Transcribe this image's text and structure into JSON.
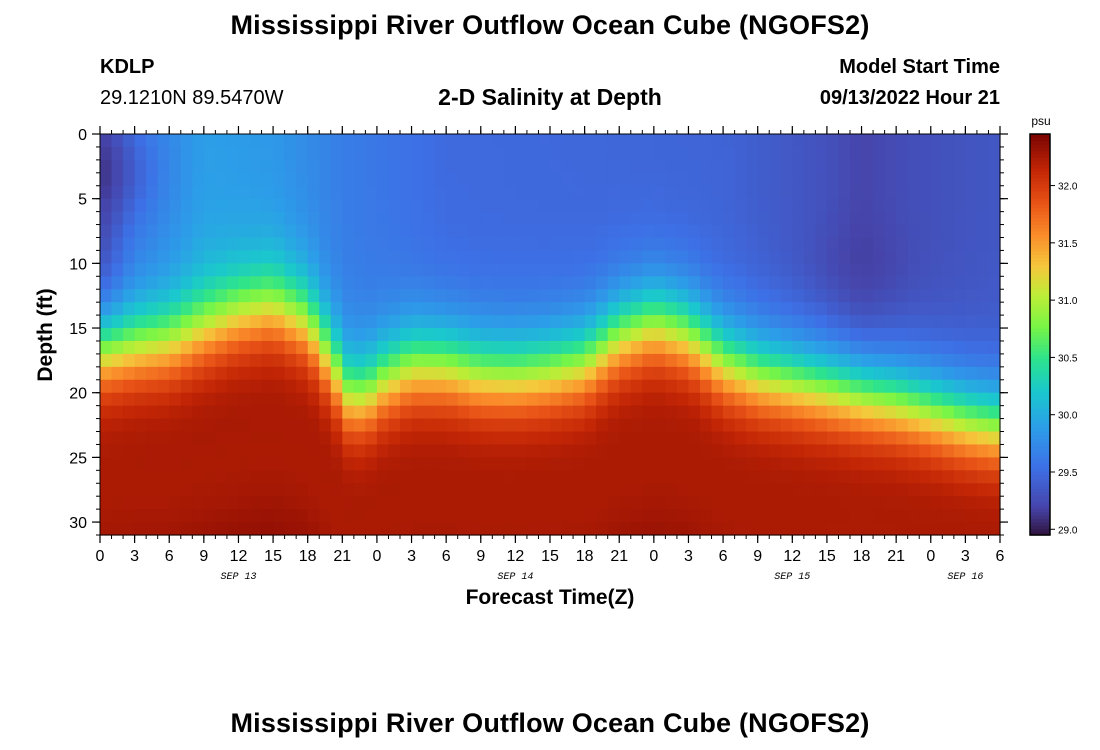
{
  "page": {
    "title": "Mississippi River Outflow Ocean Cube (NGOFS2)",
    "repeat_title": "Mississippi River Outflow Ocean Cube (NGOFS2)",
    "station_id": "KDLP",
    "station_coords": "29.1210N  89.5470W",
    "subtitle": "2-D Salinity at Depth",
    "model_start_label": "Model Start Time",
    "model_start_value": "09/13/2022 Hour 21"
  },
  "chart_data": {
    "type": "heatmap",
    "title": "2-D Salinity at Depth",
    "xlabel": "Forecast Time(Z)",
    "ylabel": "Depth (ft)",
    "xlim": [
      0,
      78
    ],
    "ylim": [
      31,
      0
    ],
    "y_ticks": [
      0,
      5,
      10,
      15,
      20,
      25,
      30
    ],
    "x_ticks": [
      {
        "t": 0,
        "label": "0"
      },
      {
        "t": 3,
        "label": "3"
      },
      {
        "t": 6,
        "label": "6"
      },
      {
        "t": 9,
        "label": "9"
      },
      {
        "t": 12,
        "label": "12"
      },
      {
        "t": 15,
        "label": "15"
      },
      {
        "t": 18,
        "label": "18"
      },
      {
        "t": 21,
        "label": "21"
      },
      {
        "t": 24,
        "label": "0"
      },
      {
        "t": 27,
        "label": "3"
      },
      {
        "t": 30,
        "label": "6"
      },
      {
        "t": 33,
        "label": "9"
      },
      {
        "t": 36,
        "label": "12"
      },
      {
        "t": 39,
        "label": "15"
      },
      {
        "t": 42,
        "label": "18"
      },
      {
        "t": 45,
        "label": "21"
      },
      {
        "t": 48,
        "label": "0"
      },
      {
        "t": 51,
        "label": "3"
      },
      {
        "t": 54,
        "label": "6"
      },
      {
        "t": 57,
        "label": "9"
      },
      {
        "t": 60,
        "label": "12"
      },
      {
        "t": 63,
        "label": "15"
      },
      {
        "t": 66,
        "label": "18"
      },
      {
        "t": 69,
        "label": "21"
      },
      {
        "t": 72,
        "label": "0"
      },
      {
        "t": 75,
        "label": "3"
      },
      {
        "t": 78,
        "label": "6"
      }
    ],
    "date_labels": [
      {
        "t": 12,
        "label": "SEP 13"
      },
      {
        "t": 36,
        "label": "SEP 14"
      },
      {
        "t": 60,
        "label": "SEP 15"
      },
      {
        "t": 75,
        "label": "SEP 16"
      }
    ],
    "colorbar": {
      "unit": "psu",
      "min": 28.95,
      "max": 32.45,
      "ticks": [
        29.0,
        29.5,
        30.0,
        30.5,
        31.0,
        31.5,
        32.0
      ],
      "tick_labels": [
        "29.0",
        "29.5",
        "30.0",
        "30.5",
        "31.0",
        "31.5",
        "32.0"
      ]
    },
    "halocline_depth_ft": [
      {
        "t": 0,
        "depth": 16.5
      },
      {
        "t": 6,
        "depth": 16
      },
      {
        "t": 12,
        "depth": 13.8
      },
      {
        "t": 15,
        "depth": 13.2
      },
      {
        "t": 18,
        "depth": 14.5
      },
      {
        "t": 20,
        "depth": 17.5
      },
      {
        "t": 21.5,
        "depth": 20
      },
      {
        "t": 23,
        "depth": 20.2
      },
      {
        "t": 24.5,
        "depth": 19
      },
      {
        "t": 27,
        "depth": 17.8
      },
      {
        "t": 30,
        "depth": 17.8
      },
      {
        "t": 33,
        "depth": 18.4
      },
      {
        "t": 36,
        "depth": 18.5
      },
      {
        "t": 39,
        "depth": 18.2
      },
      {
        "t": 42,
        "depth": 17.6
      },
      {
        "t": 45,
        "depth": 15.5
      },
      {
        "t": 48,
        "depth": 14.5
      },
      {
        "t": 51,
        "depth": 15.3
      },
      {
        "t": 54,
        "depth": 17.5
      },
      {
        "t": 57,
        "depth": 18.5
      },
      {
        "t": 60,
        "depth": 19
      },
      {
        "t": 63,
        "depth": 19.5
      },
      {
        "t": 66,
        "depth": 20
      },
      {
        "t": 69,
        "depth": 20.5
      },
      {
        "t": 72,
        "depth": 21.2
      },
      {
        "t": 75,
        "depth": 22
      },
      {
        "t": 78,
        "depth": 22.5
      }
    ],
    "surface_salinity_psu": [
      {
        "t": 0,
        "value": 29.2
      },
      {
        "t": 3,
        "value": 29.6
      },
      {
        "t": 9,
        "value": 29.9
      },
      {
        "t": 15,
        "value": 29.85
      },
      {
        "t": 21,
        "value": 29.65
      },
      {
        "t": 30,
        "value": 29.5
      },
      {
        "t": 42,
        "value": 29.48
      },
      {
        "t": 54,
        "value": 29.45
      },
      {
        "t": 63,
        "value": 29.3
      },
      {
        "t": 66,
        "value": 29.2
      },
      {
        "t": 70,
        "value": 29.28
      },
      {
        "t": 78,
        "value": 29.35
      }
    ],
    "bottom_salinity_psu": 32.3,
    "fresh_pockets": [
      {
        "t": 0,
        "depth": 3,
        "value": 29.05
      },
      {
        "t": 66,
        "depth": 10,
        "value": 29.15
      }
    ]
  }
}
